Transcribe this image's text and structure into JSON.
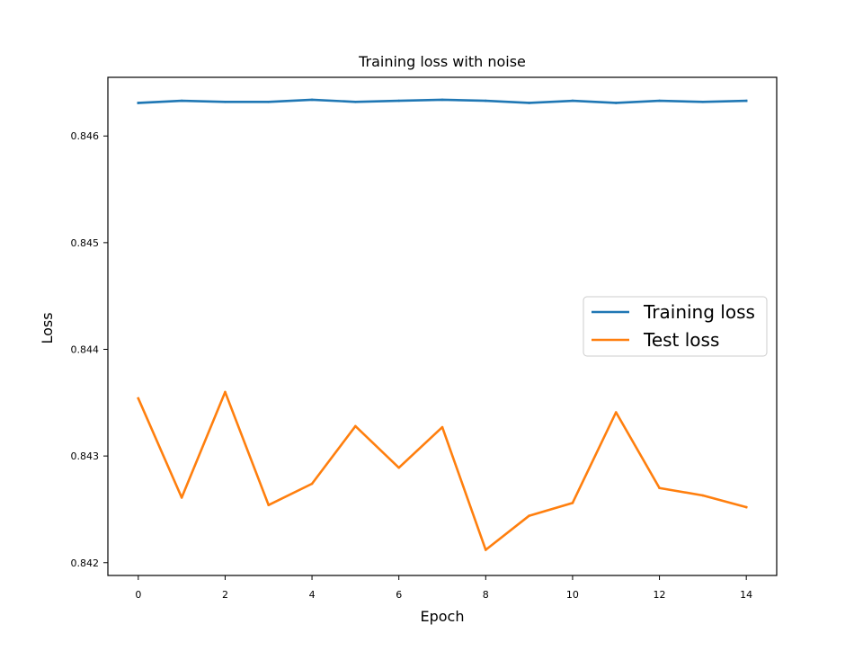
{
  "chart_data": {
    "type": "line",
    "title": "Training loss with noise",
    "xlabel": "Epoch",
    "ylabel": "Loss",
    "x": [
      0,
      1,
      2,
      3,
      4,
      5,
      6,
      7,
      8,
      9,
      10,
      11,
      12,
      13,
      14
    ],
    "xlim": [
      -0.7,
      14.7
    ],
    "ylim": [
      0.84188,
      0.84655
    ],
    "xticks": [
      0,
      2,
      4,
      6,
      8,
      10,
      12,
      14
    ],
    "xtick_labels": [
      "0",
      "2",
      "4",
      "6",
      "8",
      "10",
      "12",
      "14"
    ],
    "yticks": [
      0.842,
      0.843,
      0.844,
      0.845,
      0.846
    ],
    "ytick_labels": [
      "0.842",
      "0.843",
      "0.844",
      "0.845",
      "0.846"
    ],
    "grid": false,
    "legend_position": "center-right",
    "series": [
      {
        "name": "Training loss",
        "color": "#1f77b4",
        "values": [
          0.84631,
          0.84633,
          0.84632,
          0.84632,
          0.84634,
          0.84632,
          0.84633,
          0.84634,
          0.84633,
          0.84631,
          0.84633,
          0.84631,
          0.84633,
          0.84632,
          0.84633
        ]
      },
      {
        "name": "Test loss",
        "color": "#ff7f0e",
        "values": [
          0.84354,
          0.84261,
          0.8436,
          0.84254,
          0.84274,
          0.84328,
          0.84289,
          0.84327,
          0.84212,
          0.84244,
          0.84256,
          0.84341,
          0.8427,
          0.84263,
          0.84252
        ]
      }
    ]
  }
}
